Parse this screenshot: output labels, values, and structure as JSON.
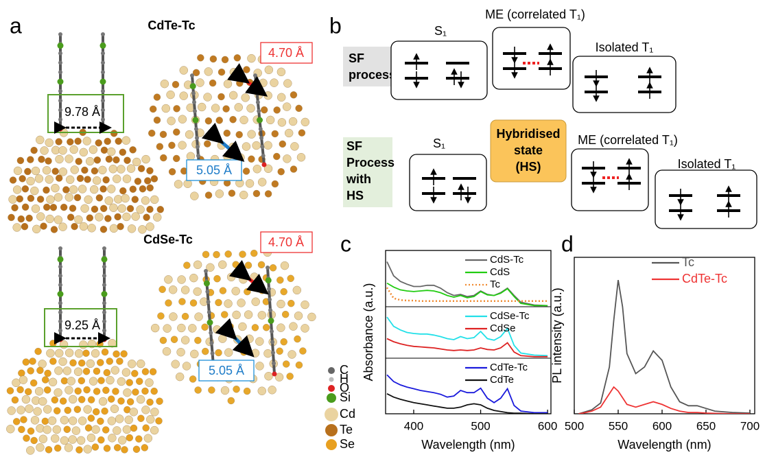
{
  "panel_a": {
    "label": "a",
    "structures": [
      {
        "title": "CdTe-Tc",
        "separation": "9.78 Å",
        "spacing_red": "4.70 Å",
        "spacing_blue": "5.05 Å"
      },
      {
        "title": "CdSe-Tc",
        "separation": "9.25 Å",
        "spacing_red": "4.70 Å",
        "spacing_blue": "5.05 Å"
      }
    ],
    "atom_legend": [
      "C",
      "H",
      "O",
      "Si",
      "Cd",
      "Te",
      "Se"
    ]
  },
  "panel_b": {
    "label": "b",
    "rows": [
      {
        "process": [
          "SF",
          "process"
        ],
        "s1": "S₁",
        "me": "ME (correlated T₁)",
        "isolated": "Isolated T₁"
      },
      {
        "process": [
          "SF",
          "Process",
          "with",
          "HS"
        ],
        "s1": "S₁",
        "hs": [
          "Hybridised",
          "state",
          "(HS)"
        ],
        "me": "ME (correlated T₁)",
        "isolated": "Isolated T₁"
      }
    ]
  },
  "chart_data": [
    {
      "type": "line",
      "label": "c",
      "xlabel": "Wavelength (nm)",
      "ylabel": "Absorbance (a.u.)",
      "x": [
        360,
        370,
        380,
        390,
        400,
        410,
        420,
        430,
        440,
        450,
        460,
        470,
        480,
        490,
        500,
        510,
        520,
        530,
        540,
        550,
        560,
        580,
        600
      ],
      "xlim": [
        358,
        605
      ],
      "xticks": [
        400,
        500,
        600
      ],
      "panels": [
        {
          "ylim": [
            0,
            1
          ],
          "series": [
            {
              "name": "CdS-Tc",
              "color": "#666666",
              "values": [
                0.8,
                0.55,
                0.45,
                0.4,
                0.36,
                0.36,
                0.38,
                0.38,
                0.33,
                0.25,
                0.2,
                0.22,
                0.18,
                0.2,
                0.28,
                0.22,
                0.2,
                0.25,
                0.33,
                0.2,
                0.08,
                0.03,
                0.02
              ]
            },
            {
              "name": "CdS",
              "color": "#22cc11",
              "values": [
                0.42,
                0.35,
                0.3,
                0.28,
                0.27,
                0.28,
                0.29,
                0.28,
                0.25,
                0.2,
                0.17,
                0.2,
                0.16,
                0.18,
                0.27,
                0.21,
                0.2,
                0.24,
                0.32,
                0.18,
                0.06,
                0.02,
                0.02
              ]
            },
            {
              "name": "Tc",
              "color": "#f08a30",
              "style": "dotted",
              "values": [
                0.34,
                0.15,
                0.12,
                0.11,
                0.11,
                0.1,
                0.1,
                0.1,
                0.1,
                0.1,
                0.1,
                0.1,
                0.1,
                0.1,
                0.1,
                0.1,
                0.1,
                0.1,
                0.1,
                0.1,
                0.1,
                0.1,
                0.1
              ]
            }
          ]
        },
        {
          "ylim": [
            0,
            1
          ],
          "series": [
            {
              "name": "CdSe-Tc",
              "color": "#22e0e8",
              "values": [
                0.8,
                0.62,
                0.55,
                0.5,
                0.48,
                0.47,
                0.47,
                0.45,
                0.42,
                0.38,
                0.36,
                0.42,
                0.38,
                0.4,
                0.52,
                0.38,
                0.35,
                0.42,
                0.58,
                0.25,
                0.1,
                0.06,
                0.05
              ]
            },
            {
              "name": "CdSe",
              "color": "#dd2222",
              "values": [
                0.38,
                0.32,
                0.28,
                0.25,
                0.23,
                0.22,
                0.21,
                0.2,
                0.18,
                0.16,
                0.15,
                0.16,
                0.15,
                0.16,
                0.2,
                0.17,
                0.16,
                0.2,
                0.3,
                0.12,
                0.05,
                0.03,
                0.03
              ]
            }
          ]
        },
        {
          "ylim": [
            0,
            1
          ],
          "series": [
            {
              "name": "CdTe-Tc",
              "color": "#1a1adc",
              "values": [
                0.7,
                0.58,
                0.52,
                0.48,
                0.45,
                0.42,
                0.4,
                0.38,
                0.35,
                0.3,
                0.32,
                0.42,
                0.38,
                0.38,
                0.46,
                0.28,
                0.2,
                0.28,
                0.45,
                0.15,
                0.05,
                0.02,
                0.02
              ]
            },
            {
              "name": "CdTe",
              "color": "#111111",
              "values": [
                0.36,
                0.3,
                0.26,
                0.23,
                0.2,
                0.18,
                0.16,
                0.14,
                0.12,
                0.1,
                0.1,
                0.12,
                0.16,
                0.18,
                0.16,
                0.1,
                0.06,
                0.04,
                0.02,
                0.01,
                0.01,
                0,
                0
              ]
            }
          ]
        }
      ]
    },
    {
      "type": "line",
      "label": "d",
      "xlabel": "Wavelength (nm)",
      "ylabel": "PL intensity (a.u.)",
      "x": [
        505,
        510,
        520,
        530,
        540,
        545,
        550,
        555,
        560,
        570,
        580,
        590,
        600,
        610,
        620,
        630,
        640,
        650,
        660,
        680,
        700
      ],
      "xlim": [
        500,
        700
      ],
      "xticks": [
        500,
        550,
        600,
        650,
        700
      ],
      "ylim": [
        0,
        1.17
      ],
      "series": [
        {
          "name": "Tc",
          "color": "#555555",
          "values": [
            0,
            0.01,
            0.03,
            0.08,
            0.35,
            0.7,
            1.0,
            0.8,
            0.45,
            0.3,
            0.35,
            0.47,
            0.4,
            0.2,
            0.09,
            0.06,
            0.06,
            0.04,
            0.02,
            0.01,
            0.005
          ]
        },
        {
          "name": "CdTe-Tc",
          "color": "#ee3333",
          "values": [
            0,
            0.005,
            0.02,
            0.05,
            0.15,
            0.2,
            0.17,
            0.12,
            0.07,
            0.05,
            0.07,
            0.09,
            0.07,
            0.04,
            0.02,
            0.01,
            0.01,
            0.005,
            0.003,
            0,
            0
          ]
        }
      ]
    }
  ]
}
